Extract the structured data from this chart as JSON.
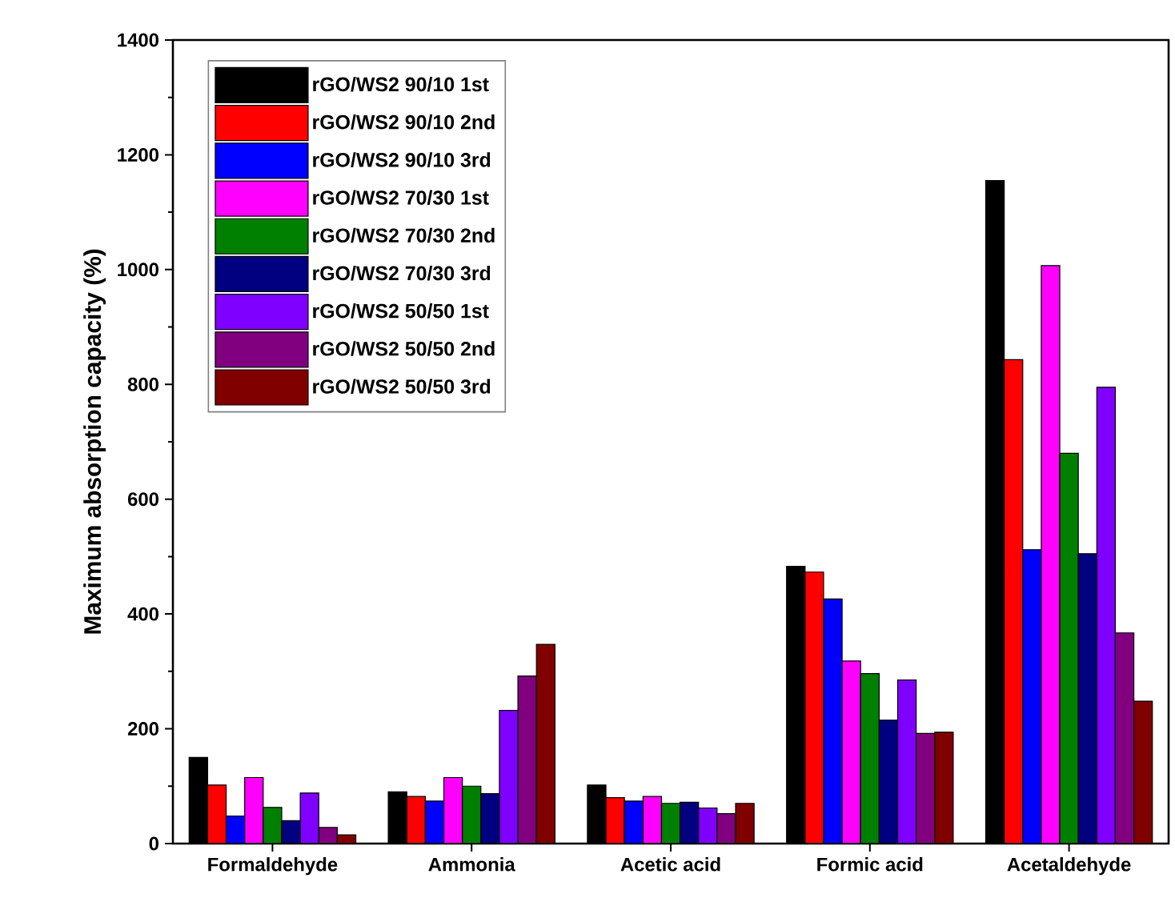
{
  "chart_data": {
    "type": "bar",
    "ylabel": "Maximum absorption capacity (%)",
    "categories": [
      "Formaldehyde",
      "Ammonia",
      "Acetic acid",
      "Formic acid",
      "Acetaldehyde"
    ],
    "series": [
      {
        "name": "rGO/WS2 90/10 1st",
        "color": "#000000",
        "values": [
          150,
          90,
          102,
          483,
          1155
        ]
      },
      {
        "name": "rGO/WS2 90/10 2nd",
        "color": "#ff0000",
        "values": [
          102,
          82,
          80,
          473,
          843
        ]
      },
      {
        "name": "rGO/WS2 90/10 3rd",
        "color": "#0000ff",
        "values": [
          48,
          74,
          74,
          426,
          512
        ]
      },
      {
        "name": "rGO/WS2 70/30 1st",
        "color": "#ff00ff",
        "values": [
          115,
          115,
          82,
          318,
          1007
        ]
      },
      {
        "name": "rGO/WS2 70/30 2nd",
        "color": "#008000",
        "values": [
          63,
          100,
          70,
          296,
          680
        ]
      },
      {
        "name": "rGO/WS2 70/30 3rd",
        "color": "#000080",
        "values": [
          40,
          87,
          72,
          215,
          505
        ]
      },
      {
        "name": "rGO/WS2 50/50 1st",
        "color": "#8000ff",
        "values": [
          88,
          232,
          62,
          285,
          795
        ]
      },
      {
        "name": "rGO/WS2 50/50 2nd",
        "color": "#800080",
        "values": [
          28,
          292,
          52,
          192,
          367
        ]
      },
      {
        "name": "rGO/WS2 50/50 3rd",
        "color": "#800000",
        "values": [
          15,
          347,
          70,
          194,
          248
        ]
      }
    ],
    "ylim": [
      0,
      1400
    ],
    "yticks": [
      0,
      200,
      400,
      600,
      800,
      1000,
      1200,
      1400
    ],
    "legend": "top left",
    "grid": false
  }
}
